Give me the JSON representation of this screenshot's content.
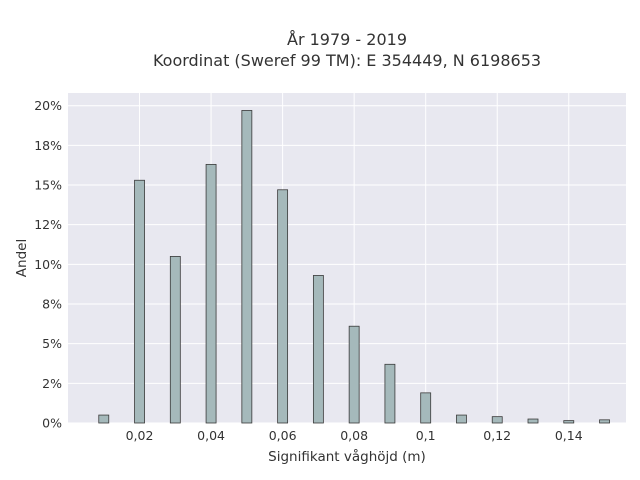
{
  "chart_data": {
    "type": "bar",
    "title_line1": "År 1979 - 2019",
    "title_line2": "Koordinat (Sweref 99 TM): E 354449, N 6198653",
    "xlabel": "Signifikant våghöjd (m)",
    "ylabel": "Andel",
    "xlim": [
      0.0,
      0.156
    ],
    "ylim": [
      0,
      20.8
    ],
    "x_ticks": [
      0.02,
      0.04,
      0.06,
      0.08,
      0.1,
      0.12,
      0.14
    ],
    "x_tick_labels": [
      "0,02",
      "0,04",
      "0,06",
      "0,08",
      "0,1",
      "0,12",
      "0,14"
    ],
    "y_ticks": [
      0,
      2.5,
      5,
      7.5,
      10,
      12.5,
      15,
      17.5,
      20
    ],
    "y_tick_labels": [
      "0%",
      "2%",
      "5%",
      "8%",
      "10%",
      "12%",
      "15%",
      "18%",
      "20%"
    ],
    "x": [
      0.01,
      0.02,
      0.03,
      0.04,
      0.05,
      0.06,
      0.07,
      0.08,
      0.09,
      0.1,
      0.11,
      0.12,
      0.13,
      0.14,
      0.15
    ],
    "values": [
      0.5,
      15.3,
      10.5,
      16.3,
      19.7,
      14.7,
      9.3,
      6.1,
      3.7,
      1.9,
      0.5,
      0.4,
      0.25,
      0.15,
      0.2
    ],
    "grid": true,
    "bar_color": "#a5b9bb",
    "bar_edge_color": "#3a3a3a",
    "plot_bg": "#e8e8f0"
  }
}
